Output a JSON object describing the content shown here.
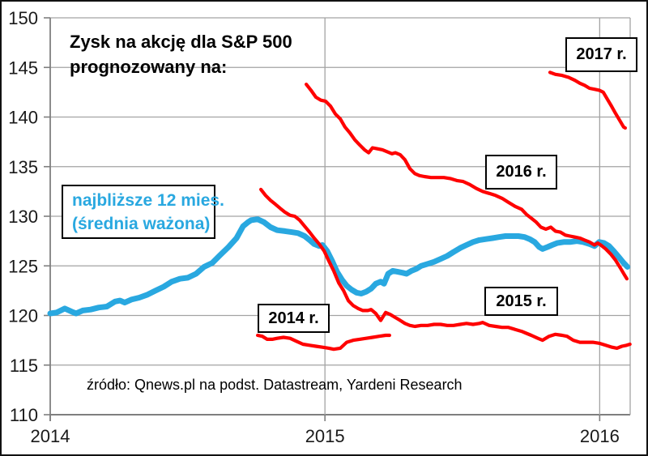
{
  "title": {
    "line1": "Zysk na akcję dla S&P 500",
    "line2": "prognozowany na:"
  },
  "legend": {
    "line1": "najbliższe 12 mies.",
    "line2": "(średnia ważona)"
  },
  "annotations": {
    "y2014": "2014 r.",
    "y2015": "2015 r.",
    "y2016": "2016 r.",
    "y2017": "2017 r."
  },
  "source": "źródło: Qnews.pl na podst. Datastream, Yardeni Research",
  "colors": {
    "red_series": "#FF0000",
    "blue_series": "#29A8E0",
    "grid": "#A3A3A3",
    "axis": "#7F7F7F",
    "text": "#1A1A1A",
    "box_border": "#000000",
    "box_fill": "#FFFFFF",
    "background": "#FFFFFF"
  },
  "chart_data": {
    "type": "line",
    "title": "Zysk na akcję dla S&P 500 prognozowany na:",
    "xlabel": "",
    "ylabel": "",
    "x_range": [
      2014.0,
      2016.111
    ],
    "y_range": [
      110,
      150
    ],
    "y_ticks": [
      110,
      115,
      120,
      125,
      130,
      135,
      140,
      145,
      150
    ],
    "x_ticks": [
      2014,
      2015,
      2016
    ],
    "grid": true,
    "legend_position": "inline-boxes",
    "series": [
      {
        "name": "najbliższe 12 mies. (średnia ważona)",
        "color_key": "blue_series",
        "width": 7,
        "points": [
          [
            2014.0,
            120.2
          ],
          [
            2014.024,
            120.3
          ],
          [
            2014.053,
            120.7
          ],
          [
            2014.077,
            120.4
          ],
          [
            2014.094,
            120.2
          ],
          [
            2014.118,
            120.5
          ],
          [
            2014.147,
            120.6
          ],
          [
            2014.177,
            120.8
          ],
          [
            2014.206,
            120.9
          ],
          [
            2014.236,
            121.4
          ],
          [
            2014.254,
            121.5
          ],
          [
            2014.271,
            121.3
          ],
          [
            2014.295,
            121.6
          ],
          [
            2014.324,
            121.8
          ],
          [
            2014.354,
            122.1
          ],
          [
            2014.383,
            122.5
          ],
          [
            2014.413,
            122.9
          ],
          [
            2014.442,
            123.4
          ],
          [
            2014.472,
            123.7
          ],
          [
            2014.501,
            123.8
          ],
          [
            2014.531,
            124.2
          ],
          [
            2014.56,
            124.9
          ],
          [
            2014.59,
            125.3
          ],
          [
            2014.619,
            126.1
          ],
          [
            2014.649,
            126.9
          ],
          [
            2014.678,
            127.8
          ],
          [
            2014.702,
            129.0
          ],
          [
            2014.72,
            129.4
          ],
          [
            2014.731,
            129.6
          ],
          [
            2014.755,
            129.7
          ],
          [
            2014.778,
            129.4
          ],
          [
            2014.802,
            128.9
          ],
          [
            2014.826,
            128.6
          ],
          [
            2014.855,
            128.5
          ],
          [
            2014.879,
            128.4
          ],
          [
            2014.902,
            128.3
          ],
          [
            2014.926,
            128.0
          ],
          [
            2014.944,
            127.6
          ],
          [
            2014.961,
            127.2
          ],
          [
            2014.979,
            127.0
          ],
          [
            2014.991,
            127.1
          ],
          [
            2015.008,
            126.5
          ],
          [
            2015.026,
            125.5
          ],
          [
            2015.044,
            124.4
          ],
          [
            2015.062,
            123.6
          ],
          [
            2015.079,
            123.0
          ],
          [
            2015.097,
            122.6
          ],
          [
            2015.115,
            122.3
          ],
          [
            2015.132,
            122.2
          ],
          [
            2015.15,
            122.4
          ],
          [
            2015.168,
            122.7
          ],
          [
            2015.185,
            123.2
          ],
          [
            2015.203,
            123.4
          ],
          [
            2015.215,
            123.2
          ],
          [
            2015.23,
            124.2
          ],
          [
            2015.247,
            124.5
          ],
          [
            2015.265,
            124.4
          ],
          [
            2015.283,
            124.3
          ],
          [
            2015.297,
            124.2
          ],
          [
            2015.315,
            124.5
          ],
          [
            2015.333,
            124.7
          ],
          [
            2015.35,
            125.0
          ],
          [
            2015.374,
            125.2
          ],
          [
            2015.397,
            125.4
          ],
          [
            2015.421,
            125.7
          ],
          [
            2015.445,
            126.0
          ],
          [
            2015.468,
            126.4
          ],
          [
            2015.492,
            126.8
          ],
          [
            2015.515,
            127.1
          ],
          [
            2015.539,
            127.4
          ],
          [
            2015.562,
            127.6
          ],
          [
            2015.586,
            127.7
          ],
          [
            2015.61,
            127.8
          ],
          [
            2015.633,
            127.9
          ],
          [
            2015.657,
            128.0
          ],
          [
            2015.68,
            128.0
          ],
          [
            2015.704,
            128.0
          ],
          [
            2015.727,
            127.9
          ],
          [
            2015.745,
            127.7
          ],
          [
            2015.763,
            127.4
          ],
          [
            2015.78,
            126.9
          ],
          [
            2015.792,
            126.7
          ],
          [
            2015.81,
            126.9
          ],
          [
            2015.827,
            127.1
          ],
          [
            2015.845,
            127.3
          ],
          [
            2015.869,
            127.4
          ],
          [
            2015.892,
            127.4
          ],
          [
            2015.916,
            127.5
          ],
          [
            2015.939,
            127.4
          ],
          [
            2015.963,
            127.2
          ],
          [
            2015.981,
            127.0
          ],
          [
            2015.998,
            127.4
          ],
          [
            2016.016,
            127.3
          ],
          [
            2016.034,
            127.0
          ],
          [
            2016.051,
            126.5
          ],
          [
            2016.069,
            125.9
          ],
          [
            2016.087,
            125.3
          ],
          [
            2016.101,
            124.9
          ]
        ]
      },
      {
        "name": "2014 r.",
        "color_key": "red_series",
        "width": 4.2,
        "points": [
          [
            2014.755,
            118.0
          ],
          [
            2014.772,
            117.9
          ],
          [
            2014.79,
            117.6
          ],
          [
            2014.808,
            117.6
          ],
          [
            2014.826,
            117.7
          ],
          [
            2014.849,
            117.8
          ],
          [
            2014.873,
            117.7
          ],
          [
            2014.896,
            117.4
          ],
          [
            2014.92,
            117.1
          ],
          [
            2014.944,
            117.0
          ],
          [
            2014.967,
            116.9
          ],
          [
            2014.991,
            116.8
          ],
          [
            2015.014,
            116.7
          ],
          [
            2015.032,
            116.6
          ],
          [
            2015.056,
            116.7
          ],
          [
            2015.079,
            117.3
          ],
          [
            2015.103,
            117.5
          ],
          [
            2015.126,
            117.6
          ],
          [
            2015.15,
            117.7
          ],
          [
            2015.173,
            117.8
          ],
          [
            2015.197,
            117.9
          ],
          [
            2015.221,
            118.0
          ],
          [
            2015.235,
            118.0
          ]
        ]
      },
      {
        "name": "2015 r.",
        "color_key": "red_series",
        "width": 4.2,
        "points": [
          [
            2014.767,
            132.7
          ],
          [
            2014.784,
            132.1
          ],
          [
            2014.802,
            131.6
          ],
          [
            2014.82,
            131.2
          ],
          [
            2014.837,
            130.8
          ],
          [
            2014.855,
            130.4
          ],
          [
            2014.873,
            130.1
          ],
          [
            2014.89,
            130.0
          ],
          [
            2014.908,
            129.6
          ],
          [
            2014.926,
            129.0
          ],
          [
            2014.944,
            128.4
          ],
          [
            2014.961,
            127.8
          ],
          [
            2014.979,
            127.2
          ],
          [
            2014.997,
            126.5
          ],
          [
            2015.014,
            125.5
          ],
          [
            2015.032,
            124.5
          ],
          [
            2015.05,
            123.3
          ],
          [
            2015.068,
            122.5
          ],
          [
            2015.085,
            121.5
          ],
          [
            2015.103,
            121.0
          ],
          [
            2015.121,
            120.7
          ],
          [
            2015.138,
            120.5
          ],
          [
            2015.156,
            120.5
          ],
          [
            2015.168,
            120.6
          ],
          [
            2015.185,
            120.2
          ],
          [
            2015.203,
            119.5
          ],
          [
            2015.221,
            120.3
          ],
          [
            2015.238,
            120.1
          ],
          [
            2015.256,
            119.8
          ],
          [
            2015.274,
            119.5
          ],
          [
            2015.291,
            119.2
          ],
          [
            2015.309,
            119.0
          ],
          [
            2015.327,
            118.9
          ],
          [
            2015.35,
            119.0
          ],
          [
            2015.374,
            119.0
          ],
          [
            2015.397,
            119.1
          ],
          [
            2015.421,
            119.1
          ],
          [
            2015.445,
            119.0
          ],
          [
            2015.468,
            119.0
          ],
          [
            2015.492,
            119.1
          ],
          [
            2015.515,
            119.2
          ],
          [
            2015.539,
            119.1
          ],
          [
            2015.562,
            119.2
          ],
          [
            2015.574,
            119.3
          ],
          [
            2015.598,
            119.0
          ],
          [
            2015.621,
            118.9
          ],
          [
            2015.645,
            118.8
          ],
          [
            2015.668,
            118.8
          ],
          [
            2015.692,
            118.6
          ],
          [
            2015.716,
            118.4
          ],
          [
            2015.733,
            118.2
          ],
          [
            2015.751,
            118.0
          ],
          [
            2015.775,
            117.7
          ],
          [
            2015.792,
            117.5
          ],
          [
            2015.816,
            117.9
          ],
          [
            2015.839,
            118.1
          ],
          [
            2015.863,
            118.0
          ],
          [
            2015.881,
            117.9
          ],
          [
            2015.904,
            117.5
          ],
          [
            2015.928,
            117.3
          ],
          [
            2015.951,
            117.3
          ],
          [
            2015.975,
            117.3
          ],
          [
            2015.998,
            117.2
          ],
          [
            2016.022,
            117.0
          ],
          [
            2016.045,
            116.8
          ],
          [
            2016.063,
            116.7
          ],
          [
            2016.081,
            116.9
          ],
          [
            2016.098,
            117.0
          ],
          [
            2016.11,
            117.1
          ]
        ]
      },
      {
        "name": "2016 r.",
        "color_key": "red_series",
        "width": 4.2,
        "points": [
          [
            2014.932,
            143.3
          ],
          [
            2014.949,
            142.7
          ],
          [
            2014.967,
            142.0
          ],
          [
            2014.985,
            141.7
          ],
          [
            2015.002,
            141.6
          ],
          [
            2015.02,
            141.1
          ],
          [
            2015.038,
            140.3
          ],
          [
            2015.056,
            139.8
          ],
          [
            2015.073,
            139.0
          ],
          [
            2015.091,
            138.4
          ],
          [
            2015.109,
            137.7
          ],
          [
            2015.126,
            137.2
          ],
          [
            2015.144,
            136.7
          ],
          [
            2015.159,
            136.4
          ],
          [
            2015.173,
            136.9
          ],
          [
            2015.191,
            136.8
          ],
          [
            2015.209,
            136.7
          ],
          [
            2015.227,
            136.5
          ],
          [
            2015.244,
            136.3
          ],
          [
            2015.256,
            136.4
          ],
          [
            2015.274,
            136.2
          ],
          [
            2015.291,
            135.7
          ],
          [
            2015.309,
            134.8
          ],
          [
            2015.327,
            134.3
          ],
          [
            2015.344,
            134.1
          ],
          [
            2015.362,
            134.0
          ],
          [
            2015.386,
            133.9
          ],
          [
            2015.409,
            133.9
          ],
          [
            2015.433,
            133.9
          ],
          [
            2015.456,
            133.8
          ],
          [
            2015.48,
            133.6
          ],
          [
            2015.503,
            133.5
          ],
          [
            2015.527,
            133.2
          ],
          [
            2015.551,
            132.8
          ],
          [
            2015.574,
            132.5
          ],
          [
            2015.598,
            132.3
          ],
          [
            2015.621,
            132.1
          ],
          [
            2015.645,
            131.8
          ],
          [
            2015.668,
            131.4
          ],
          [
            2015.692,
            131.0
          ],
          [
            2015.716,
            130.7
          ],
          [
            2015.733,
            130.2
          ],
          [
            2015.751,
            129.8
          ],
          [
            2015.769,
            129.4
          ],
          [
            2015.786,
            128.9
          ],
          [
            2015.804,
            128.7
          ],
          [
            2015.822,
            128.9
          ],
          [
            2015.839,
            128.5
          ],
          [
            2015.857,
            128.4
          ],
          [
            2015.875,
            128.1
          ],
          [
            2015.892,
            128.0
          ],
          [
            2015.91,
            127.9
          ],
          [
            2015.928,
            127.8
          ],
          [
            2015.945,
            127.6
          ],
          [
            2015.963,
            127.4
          ],
          [
            2015.981,
            127.1
          ],
          [
            2015.993,
            127.3
          ],
          [
            2016.004,
            127.1
          ],
          [
            2016.022,
            126.7
          ],
          [
            2016.04,
            126.2
          ],
          [
            2016.057,
            125.6
          ],
          [
            2016.075,
            124.8
          ],
          [
            2016.09,
            124.1
          ],
          [
            2016.099,
            123.7
          ]
        ]
      },
      {
        "name": "2017 r.",
        "color_key": "red_series",
        "width": 4.2,
        "points": [
          [
            2015.819,
            144.5
          ],
          [
            2015.839,
            144.3
          ],
          [
            2015.863,
            144.2
          ],
          [
            2015.887,
            144.0
          ],
          [
            2015.91,
            143.7
          ],
          [
            2015.928,
            143.4
          ],
          [
            2015.945,
            143.2
          ],
          [
            2015.963,
            142.9
          ],
          [
            2015.981,
            142.8
          ],
          [
            2015.998,
            142.7
          ],
          [
            2016.013,
            142.5
          ],
          [
            2016.028,
            141.8
          ],
          [
            2016.043,
            141.1
          ],
          [
            2016.057,
            140.4
          ],
          [
            2016.072,
            139.7
          ],
          [
            2016.087,
            139.0
          ],
          [
            2016.093,
            138.9
          ]
        ]
      }
    ]
  }
}
